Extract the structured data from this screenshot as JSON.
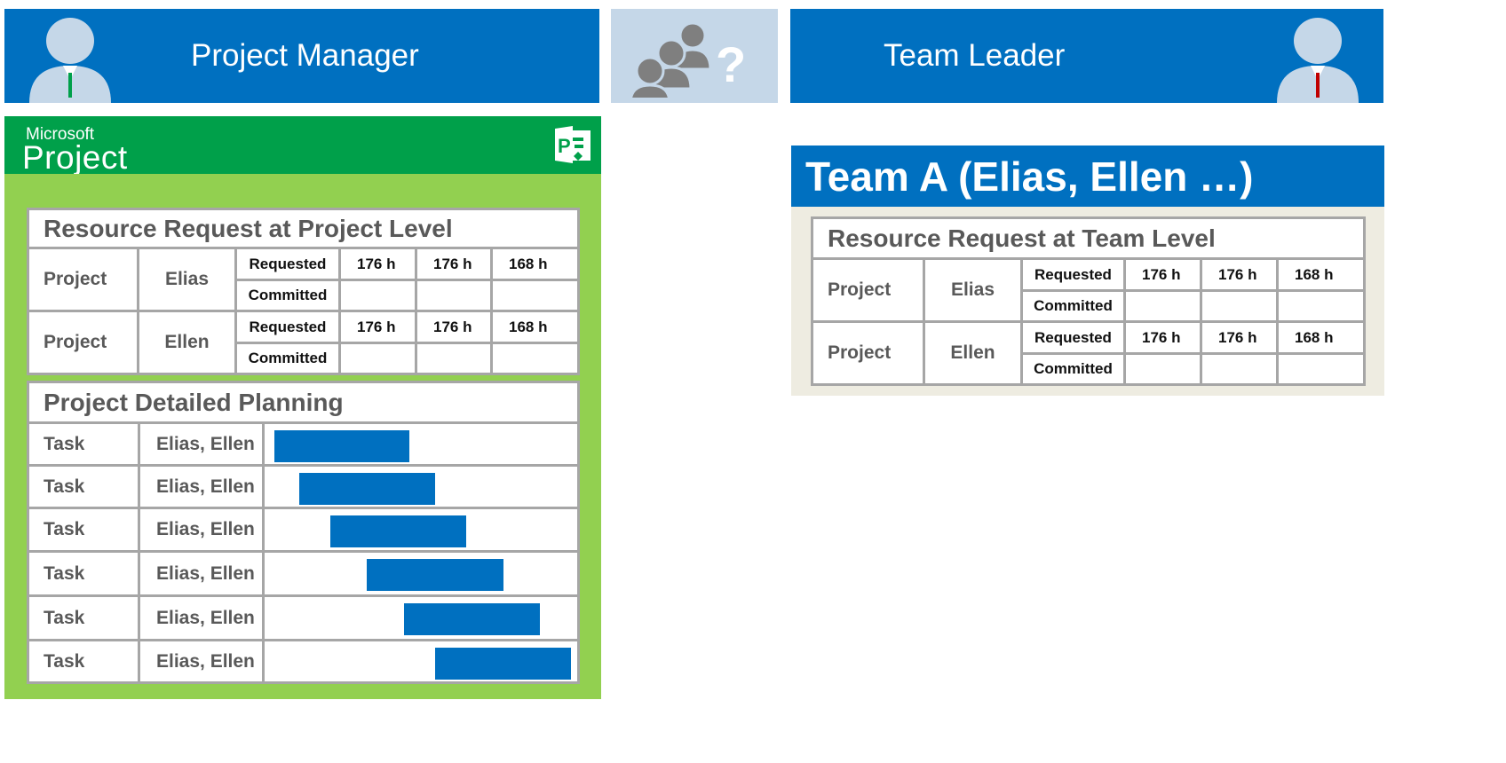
{
  "header": {
    "left_title": "Project Manager",
    "right_title": "Team Leader"
  },
  "colors": {
    "brand_blue": "#0070c0",
    "project_green_dark": "#00a04a",
    "project_green_light": "#92d050",
    "team_panel_bg": "#eeece1"
  },
  "icons": [
    "person-green-tie-icon",
    "people-question-icon",
    "person-red-tie-icon",
    "ms-project-logo-icon"
  ],
  "ms_project": {
    "brand_small": "Microsoft",
    "brand_large": "Project",
    "logo_letter": "P"
  },
  "project_request": {
    "title": "Resource Request at Project Level",
    "rows": [
      {
        "label": "Project",
        "name": "Elias",
        "requested_label": "Requested",
        "committed_label": "Committed",
        "hours": [
          "176 h",
          "176 h",
          "168 h"
        ]
      },
      {
        "label": "Project",
        "name": "Ellen",
        "requested_label": "Requested",
        "committed_label": "Committed",
        "hours": [
          "176 h",
          "176 h",
          "168 h"
        ]
      }
    ]
  },
  "planning": {
    "title": "Project Detailed Planning",
    "tasks": [
      {
        "label": "Task",
        "resources": "Elias, Ellen"
      },
      {
        "label": "Task",
        "resources": "Elias, Ellen"
      },
      {
        "label": "Task",
        "resources": "Elias, Ellen"
      },
      {
        "label": "Task",
        "resources": "Elias, Ellen"
      },
      {
        "label": "Task",
        "resources": "Elias, Ellen"
      },
      {
        "label": "Task",
        "resources": "Elias, Ellen"
      }
    ]
  },
  "team": {
    "title": "Team A (Elias, Ellen …)",
    "request": {
      "title": "Resource Request at Team Level",
      "rows": [
        {
          "label": "Project",
          "name": "Elias",
          "requested_label": "Requested",
          "committed_label": "Committed",
          "hours": [
            "176 h",
            "176 h",
            "168 h"
          ]
        },
        {
          "label": "Project",
          "name": "Ellen",
          "requested_label": "Requested",
          "committed_label": "Committed",
          "hours": [
            "176 h",
            "176 h",
            "168 h"
          ]
        }
      ]
    }
  }
}
